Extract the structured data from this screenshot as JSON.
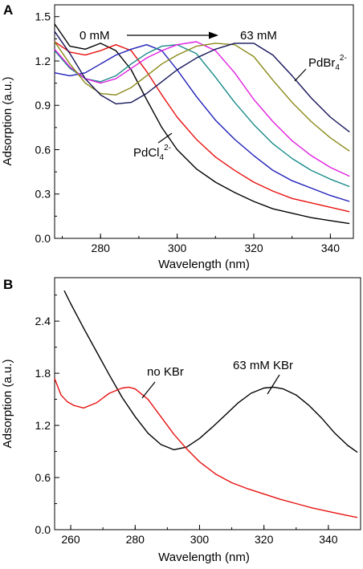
{
  "colors": {
    "black": "#000000",
    "red": "#e8110f",
    "blue": "#1f1fb8",
    "green": "#1a7a1a",
    "teal": "#1a8a8a",
    "magenta": "#e020e0",
    "olive": "#8a8a1a",
    "navy": "#15155a"
  },
  "chart_data": [
    {
      "panel": "A",
      "type": "line",
      "xlabel": "Wavelength (nm)",
      "ylabel": "Adsorption (a.u.)",
      "xlim": [
        268,
        346
      ],
      "ylim": [
        0.0,
        1.58
      ],
      "xticks": [
        280,
        300,
        320,
        340
      ],
      "yticks": [
        0.0,
        0.3,
        0.6,
        0.9,
        1.2,
        1.5
      ],
      "ytick_labels": [
        "0.0",
        "0.3",
        "0.6",
        "0.9",
        "1.2",
        "1.5"
      ],
      "annotations": {
        "start": "0 mM",
        "end": "63 mM",
        "left_species": "PdCl",
        "left_sub": "4",
        "left_sup": "2-",
        "right_species": "PdBr",
        "right_sub": "4",
        "right_sup": "2-"
      },
      "series": [
        {
          "color": "black",
          "x": [
            268,
            272,
            276,
            280,
            284,
            288,
            292,
            296,
            300,
            305,
            310,
            315,
            320,
            325,
            330,
            335,
            340,
            345
          ],
          "y": [
            1.45,
            1.3,
            1.28,
            1.32,
            1.27,
            1.14,
            0.94,
            0.75,
            0.6,
            0.47,
            0.38,
            0.31,
            0.25,
            0.2,
            0.17,
            0.14,
            0.12,
            0.1
          ]
        },
        {
          "color": "red",
          "x": [
            268,
            272,
            276,
            280,
            284,
            288,
            292,
            296,
            300,
            305,
            310,
            315,
            320,
            325,
            330,
            335,
            340,
            345
          ],
          "y": [
            1.33,
            1.26,
            1.24,
            1.27,
            1.31,
            1.27,
            1.13,
            0.97,
            0.82,
            0.67,
            0.55,
            0.46,
            0.38,
            0.32,
            0.27,
            0.24,
            0.21,
            0.18
          ]
        },
        {
          "color": "blue",
          "x": [
            268,
            272,
            276,
            280,
            284,
            288,
            292,
            296,
            300,
            305,
            310,
            315,
            320,
            325,
            330,
            335,
            340,
            345
          ],
          "y": [
            1.12,
            1.1,
            1.12,
            1.18,
            1.24,
            1.28,
            1.31,
            1.27,
            1.14,
            0.96,
            0.8,
            0.67,
            0.56,
            0.46,
            0.39,
            0.34,
            0.29,
            0.25
          ]
        },
        {
          "color": "teal",
          "x": [
            268,
            272,
            276,
            280,
            284,
            288,
            292,
            296,
            300,
            305,
            310,
            315,
            320,
            325,
            330,
            335,
            340,
            345
          ],
          "y": [
            1.27,
            1.15,
            1.08,
            1.06,
            1.1,
            1.18,
            1.25,
            1.3,
            1.31,
            1.25,
            1.09,
            0.92,
            0.77,
            0.64,
            0.54,
            0.46,
            0.4,
            0.35
          ]
        },
        {
          "color": "magenta",
          "x": [
            268,
            272,
            276,
            280,
            284,
            288,
            292,
            296,
            300,
            305,
            310,
            315,
            320,
            325,
            330,
            335,
            340,
            345
          ],
          "y": [
            1.28,
            1.16,
            1.08,
            1.05,
            1.08,
            1.15,
            1.22,
            1.27,
            1.31,
            1.33,
            1.27,
            1.12,
            0.94,
            0.79,
            0.66,
            0.56,
            0.48,
            0.42
          ]
        },
        {
          "color": "olive",
          "x": [
            268,
            272,
            276,
            280,
            284,
            288,
            292,
            296,
            300,
            305,
            310,
            315,
            320,
            325,
            330,
            335,
            340,
            345
          ],
          "y": [
            1.33,
            1.18,
            1.05,
            0.98,
            0.97,
            1.02,
            1.1,
            1.18,
            1.24,
            1.3,
            1.32,
            1.31,
            1.23,
            1.07,
            0.92,
            0.79,
            0.68,
            0.59
          ]
        },
        {
          "color": "navy",
          "x": [
            268,
            272,
            276,
            280,
            284,
            288,
            292,
            296,
            300,
            305,
            310,
            315,
            320,
            325,
            330,
            335,
            340,
            345
          ],
          "y": [
            1.4,
            1.25,
            1.08,
            0.97,
            0.91,
            0.92,
            0.98,
            1.06,
            1.14,
            1.22,
            1.28,
            1.32,
            1.32,
            1.24,
            1.1,
            0.95,
            0.82,
            0.72
          ]
        }
      ]
    },
    {
      "panel": "B",
      "type": "line",
      "xlabel": "Wavelength (nm)",
      "ylabel": "Adsorption (a.u.)",
      "xlim": [
        255,
        350
      ],
      "ylim": [
        0.0,
        2.9
      ],
      "xticks": [
        260,
        280,
        300,
        320,
        340
      ],
      "yticks": [
        0.0,
        0.6,
        1.2,
        1.8,
        2.4
      ],
      "ytick_labels": [
        "0.0",
        "0.6",
        "1.2",
        "1.8",
        "2.4"
      ],
      "annotations": {
        "red_label": "no KBr",
        "black_label": "63 mM KBr"
      },
      "series": [
        {
          "color": "black",
          "name": "63 mM KBr",
          "x": [
            258,
            260,
            264,
            268,
            272,
            276,
            280,
            284,
            288,
            292,
            296,
            300,
            304,
            308,
            312,
            316,
            320,
            323,
            326,
            330,
            334,
            338,
            342,
            346,
            349
          ],
          "y": [
            2.75,
            2.6,
            2.32,
            2.05,
            1.78,
            1.52,
            1.3,
            1.11,
            0.98,
            0.92,
            0.95,
            1.05,
            1.18,
            1.32,
            1.46,
            1.57,
            1.63,
            1.64,
            1.62,
            1.55,
            1.43,
            1.28,
            1.11,
            0.97,
            0.89
          ]
        },
        {
          "color": "red",
          "name": "no KBr",
          "x": [
            255,
            257,
            259,
            261,
            264,
            268,
            272,
            276,
            278,
            280,
            284,
            288,
            292,
            296,
            300,
            305,
            310,
            315,
            320,
            325,
            330,
            335,
            340,
            345,
            349
          ],
          "y": [
            1.74,
            1.55,
            1.47,
            1.43,
            1.4,
            1.46,
            1.57,
            1.63,
            1.64,
            1.62,
            1.5,
            1.3,
            1.1,
            0.93,
            0.78,
            0.64,
            0.54,
            0.47,
            0.41,
            0.35,
            0.3,
            0.25,
            0.21,
            0.17,
            0.14
          ]
        }
      ]
    }
  ]
}
